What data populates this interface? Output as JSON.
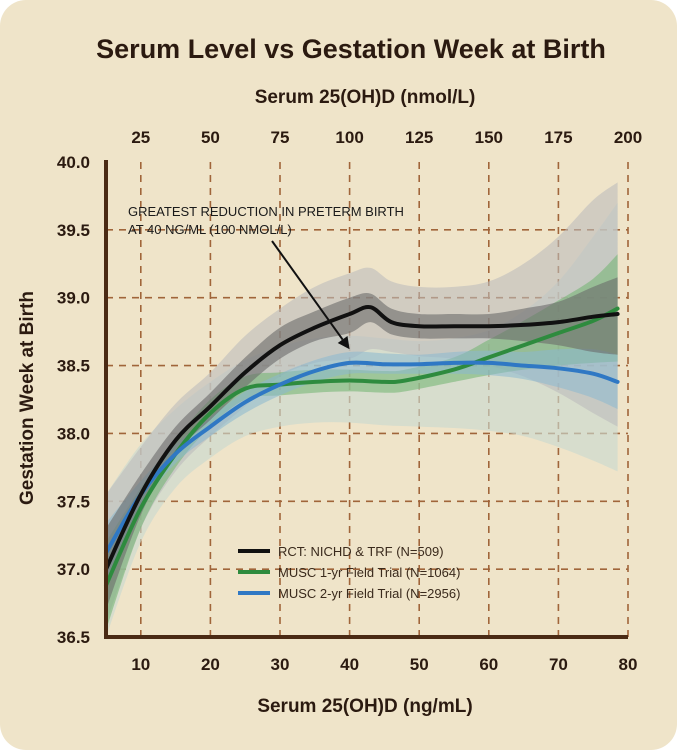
{
  "chart_data": {
    "type": "line",
    "title": "Serum Level vs Gestation Week at Birth",
    "top_axis_label": "Serum 25(OH)D (nmol/L)",
    "xlabel": "Serum 25(OH)D (ng/mL)",
    "ylabel": "Gestation Week at Birth",
    "xlim": [
      5,
      80
    ],
    "ylim": [
      36.5,
      40.0
    ],
    "x_ticks": [
      10,
      20,
      30,
      40,
      50,
      60,
      70,
      80
    ],
    "y_ticks": [
      "36.5",
      "37.0",
      "37.5",
      "38.0",
      "38.5",
      "39.0",
      "39.5",
      "40.0"
    ],
    "top_ticks": [
      25,
      50,
      75,
      100,
      125,
      150,
      175,
      200
    ],
    "grid": true,
    "legend_position": "bottom-center",
    "annotation": {
      "lines": [
        "GREATEST REDUCTION IN PRETERM BIRTH",
        "AT 40 NG/ML (100 NMOL/L)"
      ],
      "points_to": {
        "x": 40,
        "y": 38.62
      }
    },
    "series": [
      {
        "name": "RCT: NICHD & TRF (N=509)",
        "color": "#111111",
        "band_color": "#6a6a6a",
        "x": [
          5,
          10,
          15,
          20,
          25,
          30,
          35,
          40,
          43,
          46,
          50,
          55,
          60,
          65,
          70,
          75,
          78.5
        ],
        "y": [
          37.0,
          37.55,
          37.95,
          38.2,
          38.45,
          38.65,
          38.78,
          38.88,
          38.93,
          38.82,
          38.79,
          38.79,
          38.79,
          38.8,
          38.82,
          38.86,
          38.88
        ],
        "lower": [
          36.7,
          37.4,
          37.85,
          38.1,
          38.34,
          38.55,
          38.68,
          38.74,
          38.82,
          38.73,
          38.7,
          38.7,
          38.7,
          38.68,
          38.65,
          38.6,
          38.58
        ],
        "upper": [
          37.3,
          37.7,
          38.05,
          38.3,
          38.56,
          38.78,
          38.9,
          39.0,
          39.03,
          38.92,
          38.88,
          38.88,
          38.88,
          38.92,
          38.97,
          39.08,
          39.15
        ],
        "outer_lower": [
          36.6,
          37.3,
          37.72,
          37.98,
          38.2,
          38.42,
          38.52,
          38.55,
          38.62,
          38.6,
          38.57,
          38.55,
          38.5,
          38.42,
          38.3,
          38.15,
          38.05
        ],
        "outer_upper": [
          37.55,
          37.9,
          38.22,
          38.45,
          38.72,
          38.92,
          39.08,
          39.18,
          39.22,
          39.12,
          39.08,
          39.08,
          39.12,
          39.25,
          39.45,
          39.72,
          39.85
        ]
      },
      {
        "name": "MUSC 1-yr Field Trial (N=1064)",
        "color": "#2e8b3e",
        "band_color": "#6fb36f",
        "x": [
          5,
          10,
          15,
          20,
          25,
          30,
          35,
          40,
          45,
          48,
          55,
          60,
          65,
          70,
          75,
          78.5
        ],
        "y": [
          36.88,
          37.45,
          37.85,
          38.15,
          38.33,
          38.36,
          38.38,
          38.39,
          38.38,
          38.39,
          38.47,
          38.56,
          38.65,
          38.74,
          38.83,
          38.92
        ],
        "lower": [
          36.55,
          37.3,
          37.75,
          38.05,
          38.25,
          38.28,
          38.3,
          38.31,
          38.3,
          38.31,
          38.38,
          38.43,
          38.47,
          38.5,
          38.52,
          38.53
        ],
        "upper": [
          37.2,
          37.6,
          37.95,
          38.25,
          38.42,
          38.45,
          38.47,
          38.47,
          38.46,
          38.47,
          38.56,
          38.69,
          38.83,
          38.98,
          39.14,
          39.32
        ]
      },
      {
        "name": "MUSC 2-yr Field Trial (N=2956)",
        "color": "#2f78c4",
        "band_color": "#8ab8d0",
        "x": [
          5,
          10,
          15,
          20,
          25,
          30,
          35,
          40,
          45,
          50,
          55,
          60,
          65,
          70,
          75,
          78.5
        ],
        "y": [
          37.12,
          37.55,
          37.85,
          38.05,
          38.23,
          38.36,
          38.46,
          38.52,
          38.51,
          38.51,
          38.52,
          38.52,
          38.5,
          38.48,
          38.44,
          38.38
        ],
        "lower": [
          36.9,
          37.45,
          37.78,
          37.98,
          38.15,
          38.28,
          38.38,
          38.44,
          38.44,
          38.44,
          38.44,
          38.43,
          38.4,
          38.34,
          38.26,
          38.18
        ],
        "upper": [
          37.34,
          37.65,
          37.92,
          38.12,
          38.31,
          38.44,
          38.54,
          38.6,
          38.59,
          38.58,
          38.6,
          38.61,
          38.6,
          38.62,
          38.62,
          38.58
        ]
      }
    ],
    "wide_band": {
      "x": [
        5,
        10,
        15,
        20,
        25,
        30,
        35,
        40,
        45,
        50,
        55,
        60,
        65,
        70,
        75,
        78.5
      ],
      "lower": [
        36.5,
        37.2,
        37.6,
        37.82,
        37.98,
        38.05,
        38.08,
        38.08,
        38.06,
        38.05,
        38.04,
        38.02,
        37.98,
        37.9,
        37.8,
        37.72
      ],
      "upper": [
        37.55,
        37.92,
        38.18,
        38.38,
        38.54,
        38.64,
        38.7,
        38.72,
        38.7,
        38.68,
        38.7,
        38.76,
        38.9,
        39.12,
        39.45,
        39.7
      ]
    }
  }
}
